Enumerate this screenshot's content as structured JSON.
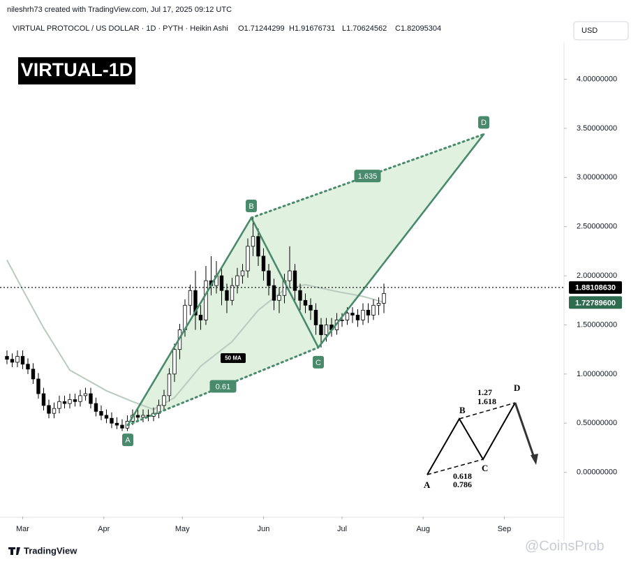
{
  "chart_data": {
    "type": "candlestick",
    "title": "VIRTUAL-1D",
    "attribution": "nileshrh73 created with TradingView.com, Jul 17, 2025 09:12 UTC",
    "symbol_line": "VIRTUAL PROTOCOL / US DOLLAR · 1D · PYTH · Heikin Ashi",
    "ohlc_labels": [
      "O1.71244299",
      "H1.91676731",
      "L1.70624562",
      "C1.82095304"
    ],
    "currency": "USD",
    "open": [
      1.18,
      1.15,
      1.12,
      1.18,
      1.1,
      1.05,
      0.95,
      0.8,
      0.68,
      0.6,
      0.65,
      0.72,
      0.7,
      0.74,
      0.72,
      0.78,
      0.8,
      0.7,
      0.62,
      0.58,
      0.55,
      0.5,
      0.48,
      0.45,
      0.52,
      0.58,
      0.56,
      0.58,
      0.57,
      0.6,
      0.68,
      0.78,
      1.0,
      1.25,
      1.45,
      1.7,
      1.85,
      1.6,
      1.55,
      1.95,
      1.9,
      2.0,
      1.85,
      1.75,
      1.9,
      2.0,
      2.05,
      2.3,
      2.4,
      2.2,
      2.05,
      1.9,
      1.75,
      1.8,
      1.95,
      2.05,
      1.85,
      1.75,
      1.7,
      1.65,
      1.5,
      1.4,
      1.5,
      1.45,
      1.55,
      1.55,
      1.62,
      1.6,
      1.55,
      1.65,
      1.6,
      1.7,
      1.72
    ],
    "high": [
      1.24,
      1.21,
      1.24,
      1.24,
      1.16,
      1.11,
      1.01,
      0.86,
      0.74,
      0.71,
      0.78,
      0.78,
      0.8,
      0.8,
      0.84,
      0.86,
      0.86,
      0.76,
      0.68,
      0.64,
      0.61,
      0.56,
      0.54,
      0.58,
      0.64,
      0.64,
      0.64,
      0.64,
      0.66,
      0.74,
      0.84,
      1.06,
      1.31,
      1.51,
      1.76,
      1.91,
      2.05,
      1.7,
      2.1,
      2.2,
      2.15,
      2.08,
      1.92,
      1.98,
      2.08,
      2.12,
      2.38,
      2.6,
      2.48,
      2.28,
      2.12,
      1.97,
      1.88,
      2.02,
      2.3,
      2.12,
      1.92,
      1.82,
      1.77,
      1.72,
      1.57,
      1.57,
      1.57,
      1.62,
      1.62,
      1.68,
      1.68,
      1.66,
      1.72,
      1.72,
      1.76,
      1.78,
      1.92
    ],
    "low": [
      1.1,
      1.07,
      1.07,
      1.05,
      1.0,
      0.9,
      0.75,
      0.63,
      0.55,
      0.55,
      0.6,
      0.65,
      0.65,
      0.67,
      0.67,
      0.73,
      0.65,
      0.57,
      0.53,
      0.5,
      0.45,
      0.44,
      0.42,
      0.42,
      0.48,
      0.51,
      0.51,
      0.52,
      0.52,
      0.55,
      0.63,
      0.72,
      0.92,
      1.15,
      1.38,
      1.6,
      1.45,
      1.45,
      1.5,
      1.8,
      1.82,
      1.7,
      1.62,
      1.7,
      1.82,
      1.92,
      1.98,
      2.2,
      2.1,
      1.95,
      1.8,
      1.65,
      1.62,
      1.72,
      1.88,
      1.75,
      1.65,
      1.62,
      1.55,
      1.4,
      1.27,
      1.33,
      1.38,
      1.4,
      1.48,
      1.5,
      1.52,
      1.48,
      1.5,
      1.52,
      1.55,
      1.6,
      1.62
    ],
    "close": [
      1.15,
      1.12,
      1.18,
      1.1,
      1.05,
      0.95,
      0.8,
      0.68,
      0.6,
      0.65,
      0.72,
      0.7,
      0.74,
      0.72,
      0.78,
      0.8,
      0.7,
      0.62,
      0.58,
      0.55,
      0.5,
      0.48,
      0.45,
      0.52,
      0.58,
      0.56,
      0.58,
      0.57,
      0.6,
      0.68,
      0.78,
      1.0,
      1.25,
      1.45,
      1.7,
      1.85,
      1.6,
      1.55,
      1.95,
      1.9,
      2.0,
      1.85,
      1.75,
      1.9,
      2.0,
      2.05,
      2.3,
      2.4,
      2.2,
      2.05,
      1.9,
      1.75,
      1.8,
      1.95,
      2.05,
      1.85,
      1.75,
      1.7,
      1.65,
      1.5,
      1.4,
      1.5,
      1.45,
      1.55,
      1.55,
      1.62,
      1.6,
      1.55,
      1.65,
      1.6,
      1.7,
      1.72,
      1.82
    ],
    "up_color": "#ffffff",
    "down_color": "#000000",
    "xlim": [
      -1.33,
      106.4
    ],
    "xticks": [
      {
        "value": 3,
        "label": "Mar"
      },
      {
        "value": 18.5,
        "label": "Apr"
      },
      {
        "value": 33.5,
        "label": "May"
      },
      {
        "value": 49,
        "label": "Jun"
      },
      {
        "value": 64,
        "label": "Jul"
      },
      {
        "value": 79.5,
        "label": "Aug"
      },
      {
        "value": 95,
        "label": "Sep"
      }
    ],
    "ylim": [
      -0.45,
      4.38
    ],
    "yticks": [
      {
        "value": 0,
        "label": "0.00000000"
      },
      {
        "value": 0.5,
        "label": "0.50000000"
      },
      {
        "value": 1,
        "label": "1.00000000"
      },
      {
        "value": 1.5,
        "label": "1.50000000"
      },
      {
        "value": 2,
        "label": "2.00000000"
      },
      {
        "value": 2.5,
        "label": "2.50000000"
      },
      {
        "value": 3,
        "label": "3.00000000"
      },
      {
        "value": 3.5,
        "label": "3.50000000"
      },
      {
        "value": 4,
        "label": "4.00000000"
      }
    ],
    "ma": {
      "name": "50 MA",
      "color": "#b9cabf",
      "x": [
        0,
        3,
        7,
        12,
        19,
        24,
        28,
        32,
        37,
        43,
        48,
        53,
        57,
        63,
        68,
        72
      ],
      "values": [
        2.16,
        1.86,
        1.47,
        1.04,
        0.83,
        0.72,
        0.64,
        0.76,
        1.08,
        1.33,
        1.65,
        1.86,
        1.91,
        1.84,
        1.79,
        1.73
      ]
    },
    "pattern": {
      "color": "#4a8a6c",
      "fill": "#d6ecd6",
      "points": [
        {
          "label": "A",
          "x": 23.07,
          "y": 0.48
        },
        {
          "label": "B",
          "x": 46.67,
          "y": 2.59
        },
        {
          "label": "C",
          "x": 59.47,
          "y": 1.27
        },
        {
          "label": "D",
          "x": 91.07,
          "y": 3.44
        }
      ],
      "ratios": [
        0.61,
        1.635
      ]
    },
    "price_lines": [
      {
        "value": 1.8810863,
        "label": "1.88108630",
        "color": "#000000",
        "dotted": true
      },
      {
        "value": 1.727896,
        "label": "1.72789600",
        "color": "#2f6b4f",
        "dotted": false
      }
    ],
    "footer": "TradingView",
    "watermark": "@CoinsProb"
  },
  "inset": {
    "A": "A",
    "B": "B",
    "C": "C",
    "D": "D",
    "ext_1": "1.27",
    "ext_2": "1.618",
    "ret_1": "0.618",
    "ret_2": "0.786"
  }
}
